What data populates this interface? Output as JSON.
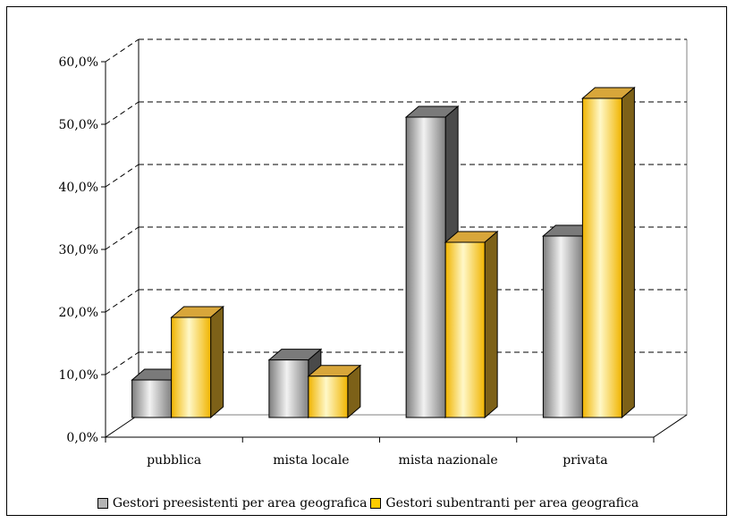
{
  "chart_data": {
    "type": "bar",
    "style": "3d-clustered-column",
    "categories": [
      "pubblica",
      "mista locale",
      "mista nazionale",
      "privata"
    ],
    "series": [
      {
        "name": "Gestori preesistenti per area geografica",
        "color": "#b4b4b4",
        "values": [
          6.0,
          9.2,
          48.0,
          29.0
        ]
      },
      {
        "name": "Gestori subentranti per area geografica",
        "color": "#ffcc00",
        "values": [
          16.0,
          6.6,
          28.0,
          51.0
        ]
      }
    ],
    "y_ticks": [
      "0,0%",
      "10,0%",
      "20,0%",
      "30,0%",
      "40,0%",
      "50,0%",
      "60,0%"
    ],
    "ylim": [
      0,
      60
    ],
    "grid": "dashed",
    "legend_position": "bottom"
  }
}
